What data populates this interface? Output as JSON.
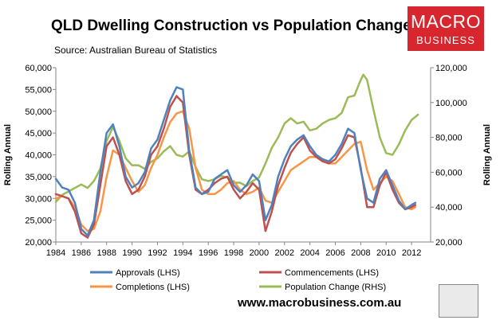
{
  "title": "QLD Dwelling Construction vs Population Change",
  "source": "Source: Australian Bureau of Statistics",
  "logo": {
    "line1": "MACRO",
    "line2": "BUSINESS"
  },
  "website": "www.macrobusiness.com.au",
  "chart_data": {
    "type": "line",
    "title": "QLD Dwelling Construction vs Population Change",
    "ylabel_left": "Rolling Annual",
    "ylabel_right": "Rolling Annual",
    "xlim": [
      1984,
      2013.5
    ],
    "ylim_left": [
      20000,
      60000
    ],
    "ylim_right": [
      20000,
      120000
    ],
    "x_ticks": [
      1984,
      1986,
      1988,
      1990,
      1992,
      1994,
      1996,
      1998,
      2000,
      2002,
      2004,
      2006,
      2008,
      2010,
      2012
    ],
    "y_ticks_left": [
      20000,
      25000,
      30000,
      35000,
      40000,
      45000,
      50000,
      55000,
      60000
    ],
    "y_ticks_right": [
      20000,
      40000,
      60000,
      80000,
      100000,
      120000
    ],
    "x_tick_labels": [
      "1984",
      "1986",
      "1988",
      "1990",
      "1992",
      "1994",
      "1996",
      "1998",
      "2000",
      "2002",
      "2004",
      "2006",
      "2008",
      "2010",
      "2012"
    ],
    "y_tick_labels_left": [
      "20,000",
      "25,000",
      "30,000",
      "35,000",
      "40,000",
      "45,000",
      "50,000",
      "55,000",
      "60,000"
    ],
    "y_tick_labels_right": [
      "20,000",
      "40,000",
      "60,000",
      "80,000",
      "100,000",
      "120,000"
    ],
    "grid": false,
    "legend_position": "bottom",
    "series": [
      {
        "name": "Approvals (LHS)",
        "axis": "left",
        "color": "#4f81bd",
        "x": [
          1984,
          1984.5,
          1985,
          1985.5,
          1986,
          1986.5,
          1987,
          1987.5,
          1988,
          1988.5,
          1989,
          1989.5,
          1990,
          1990.5,
          1991,
          1991.5,
          1992,
          1992.5,
          1993,
          1993.5,
          1994,
          1994.5,
          1995,
          1995.5,
          1996,
          1996.5,
          1997,
          1997.5,
          1998,
          1998.5,
          1999,
          1999.5,
          2000,
          2000.5,
          2001,
          2001.5,
          2002,
          2002.5,
          2003,
          2003.5,
          2004,
          2004.5,
          2005,
          2005.5,
          2006,
          2006.5,
          2007,
          2007.5,
          2008,
          2008.5,
          2009,
          2009.5,
          2010,
          2010.5,
          2011,
          2011.5,
          2012,
          2012.3
        ],
        "y": [
          34500,
          32500,
          32000,
          29000,
          23000,
          21500,
          25000,
          36000,
          45000,
          47000,
          42000,
          35000,
          32500,
          33500,
          36000,
          41500,
          43500,
          48000,
          52500,
          55500,
          55000,
          41000,
          32500,
          31000,
          31500,
          34500,
          35500,
          36500,
          33000,
          31500,
          33000,
          35500,
          34000,
          25000,
          28500,
          35000,
          39000,
          42000,
          43500,
          44500,
          42000,
          40000,
          39000,
          38500,
          40000,
          42500,
          46000,
          45000,
          36500,
          30000,
          29000,
          34500,
          36500,
          33000,
          29500,
          27500,
          28500,
          29000
        ]
      },
      {
        "name": "Commencements (LHS)",
        "axis": "left",
        "color": "#c0504d",
        "x": [
          1984,
          1984.5,
          1985,
          1985.5,
          1986,
          1986.5,
          1987,
          1987.5,
          1988,
          1988.5,
          1989,
          1989.5,
          1990,
          1990.5,
          1991,
          1991.5,
          1992,
          1992.5,
          1993,
          1993.5,
          1994,
          1994.5,
          1995,
          1995.5,
          1996,
          1996.5,
          1997,
          1997.5,
          1998,
          1998.5,
          1999,
          1999.5,
          2000,
          2000.5,
          2001,
          2001.5,
          2002,
          2002.5,
          2003,
          2003.5,
          2004,
          2004.5,
          2005,
          2005.5,
          2006,
          2006.5,
          2007,
          2007.5,
          2008,
          2008.5,
          2009,
          2009.5,
          2010,
          2010.5,
          2011,
          2011.5,
          2012,
          2012.3
        ],
        "y": [
          31000,
          30500,
          30000,
          27000,
          22000,
          21000,
          24000,
          33000,
          42000,
          44000,
          40000,
          34000,
          31000,
          32000,
          35000,
          40000,
          42000,
          46000,
          51000,
          53500,
          52000,
          40000,
          32000,
          31000,
          32000,
          33500,
          34500,
          35000,
          32000,
          30000,
          31500,
          33500,
          32000,
          22500,
          27000,
          33000,
          37000,
          40500,
          42500,
          44000,
          41000,
          39500,
          38500,
          38000,
          39000,
          41500,
          44500,
          44000,
          37000,
          28000,
          28000,
          33000,
          36000,
          32000,
          29000,
          27500,
          28000,
          28500
        ]
      },
      {
        "name": "Completions (LHS)",
        "axis": "left",
        "color": "#f79646",
        "x": [
          1984,
          1984.5,
          1985,
          1985.5,
          1986,
          1986.5,
          1987,
          1987.5,
          1988,
          1988.5,
          1989,
          1989.5,
          1990,
          1990.5,
          1991,
          1991.5,
          1992,
          1992.5,
          1993,
          1993.5,
          1994,
          1994.5,
          1995,
          1995.5,
          1996,
          1996.5,
          1997,
          1997.5,
          1998,
          1998.5,
          1999,
          1999.5,
          2000,
          2000.5,
          2001,
          2001.5,
          2002,
          2002.5,
          2003,
          2003.5,
          2004,
          2004.5,
          2005,
          2005.5,
          2006,
          2006.5,
          2007,
          2007.5,
          2008,
          2008.5,
          2009,
          2009.5,
          2010,
          2010.5,
          2011,
          2011.5,
          2012,
          2012.3
        ],
        "y": [
          30000,
          30500,
          30000,
          28000,
          24000,
          22500,
          23000,
          27000,
          35000,
          41000,
          40000,
          37000,
          34000,
          31500,
          33000,
          37000,
          40000,
          44000,
          47500,
          49500,
          50000,
          46000,
          37000,
          32000,
          31000,
          31000,
          32000,
          33500,
          34000,
          32000,
          31000,
          31500,
          32500,
          29500,
          29000,
          31500,
          34000,
          36500,
          37500,
          38500,
          39500,
          39500,
          39000,
          38000,
          38000,
          39500,
          41000,
          42500,
          43000,
          36500,
          32000,
          33500,
          35000,
          34000,
          31000,
          28000,
          27500,
          28000
        ]
      },
      {
        "name": "Population Change (RHS)",
        "axis": "right",
        "color": "#9bbb59",
        "x": [
          1984,
          1984.5,
          1985,
          1985.5,
          1986,
          1986.5,
          1987,
          1987.5,
          1988,
          1988.5,
          1989,
          1989.5,
          1990,
          1990.5,
          1991,
          1991.5,
          1992,
          1992.5,
          1993,
          1993.5,
          1994,
          1994.5,
          1995,
          1995.5,
          1996,
          1996.5,
          1997,
          1997.5,
          1998,
          1998.5,
          1999,
          1999.5,
          2000,
          2000.5,
          2001,
          2001.5,
          2002,
          2002.5,
          2003,
          2003.5,
          2004,
          2004.5,
          2005,
          2005.5,
          2006,
          2006.5,
          2007,
          2007.5,
          2008,
          2008.2,
          2008.5,
          2009,
          2009.5,
          2010,
          2010.5,
          2011,
          2011.5,
          2012,
          2012.5
        ],
        "y": [
          43000,
          47000,
          49000,
          51000,
          53000,
          51000,
          55000,
          62000,
          78000,
          86000,
          78000,
          68000,
          64000,
          64000,
          62000,
          66000,
          68000,
          72000,
          75000,
          70000,
          69000,
          72000,
          63000,
          56000,
          55000,
          56000,
          58000,
          57000,
          54000,
          54000,
          52000,
          55000,
          57000,
          65000,
          74000,
          80000,
          88000,
          91000,
          88000,
          89000,
          84000,
          85000,
          88000,
          90000,
          91000,
          94000,
          103000,
          104000,
          113000,
          116000,
          113000,
          96000,
          80000,
          71000,
          70000,
          76000,
          84000,
          90000,
          93000
        ]
      }
    ]
  }
}
